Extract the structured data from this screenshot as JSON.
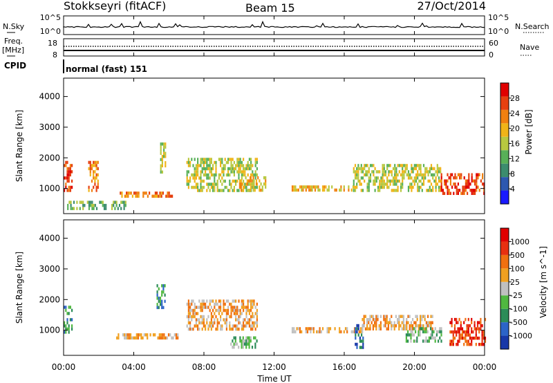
{
  "header": {
    "station": "Stokkseyri (fitACF)",
    "beam": "Beam 15",
    "date": "27/Oct/2014"
  },
  "noise_panel": {
    "left_label": "N.Sky",
    "left_ticks": [
      "10^5",
      "10^0"
    ],
    "right_label": "N.Search",
    "right_ticks": [
      "10^5",
      "10^0"
    ]
  },
  "freq_panel": {
    "left_label_1": "Freq.",
    "left_label_2": "[MHz]",
    "left_ticks": [
      "18",
      "8"
    ],
    "right_label": "Nave",
    "right_ticks": [
      "60",
      "0"
    ]
  },
  "cpid": {
    "label": "CPID",
    "program": "normal (fast) 151"
  },
  "chart_data": [
    {
      "type": "heatmap",
      "name": "power",
      "ylabel": "Slant Range [km]",
      "ylim": [
        180,
        4600
      ],
      "yticks": [
        "1000",
        "2000",
        "3000",
        "4000"
      ],
      "ytick_values": [
        1000,
        2000,
        3000,
        4000
      ],
      "colorbar_label": "Power [dB]",
      "colorbar_ticks": [
        "4",
        "8",
        "12",
        "16",
        "20",
        "24",
        "28"
      ],
      "colorbar_tick_values": [
        4,
        8,
        12,
        16,
        20,
        24,
        28
      ],
      "colorbar_range": [
        0,
        32
      ],
      "colorbar_colors": [
        "#1a1aff",
        "#2d58b0",
        "#3c8c6e",
        "#58b058",
        "#b8c840",
        "#f0b418",
        "#f08010",
        "#e64010",
        "#e00000"
      ],
      "echo_regions": [
        {
          "t": [
            0.0,
            0.5
          ],
          "r": [
            900,
            1900
          ],
          "level": 26
        },
        {
          "t": [
            1.4,
            2.0
          ],
          "r": [
            900,
            1900
          ],
          "level": 24
        },
        {
          "t": [
            0.2,
            3.5
          ],
          "r": [
            300,
            600
          ],
          "level": 12
        },
        {
          "t": [
            3.2,
            6.2
          ],
          "r": [
            700,
            900
          ],
          "level": 22
        },
        {
          "t": [
            5.5,
            5.8
          ],
          "r": [
            1500,
            2500
          ],
          "level": 14
        },
        {
          "t": [
            7.0,
            11.0
          ],
          "r": [
            900,
            2000
          ],
          "level": 14
        },
        {
          "t": [
            10.0,
            11.5
          ],
          "r": [
            900,
            1400
          ],
          "level": 20
        },
        {
          "t": [
            13.0,
            16.5
          ],
          "r": [
            900,
            1100
          ],
          "level": 20
        },
        {
          "t": [
            16.5,
            21.5
          ],
          "r": [
            900,
            1800
          ],
          "level": 16
        },
        {
          "t": [
            21.5,
            24.0
          ],
          "r": [
            800,
            1500
          ],
          "level": 26
        }
      ]
    },
    {
      "type": "heatmap",
      "name": "velocity",
      "ylabel": "Slant Range [km]",
      "ylim": [
        180,
        4600
      ],
      "yticks": [
        "1000",
        "2000",
        "3000",
        "4000"
      ],
      "ytick_values": [
        1000,
        2000,
        3000,
        4000
      ],
      "colorbar_label": "Velocity [m s^-1]",
      "colorbar_ticks": [
        "1000",
        "500",
        "100",
        "25",
        "-25",
        "-100",
        "-500",
        "-1000"
      ],
      "colorbar_colors": [
        "#1838a8",
        "#2c64c8",
        "#2c8c58",
        "#50b840",
        "#c0c0c0",
        "#f0a020",
        "#f07010",
        "#e83010",
        "#e00000"
      ],
      "echo_regions": [
        {
          "t": [
            0.0,
            0.5
          ],
          "r": [
            900,
            1800
          ],
          "vel": "-500"
        },
        {
          "t": [
            3.0,
            6.5
          ],
          "r": [
            700,
            900
          ],
          "vel": "25"
        },
        {
          "t": [
            5.3,
            5.8
          ],
          "r": [
            1700,
            2500
          ],
          "vel": "-500"
        },
        {
          "t": [
            7.0,
            11.0
          ],
          "r": [
            1000,
            2000
          ],
          "vel": "25"
        },
        {
          "t": [
            9.5,
            11.0
          ],
          "r": [
            400,
            800
          ],
          "vel": "-100"
        },
        {
          "t": [
            13.0,
            17.0
          ],
          "r": [
            900,
            1100
          ],
          "vel": "25"
        },
        {
          "t": [
            16.6,
            17.1
          ],
          "r": [
            400,
            1200
          ],
          "vel": "-1000"
        },
        {
          "t": [
            17.0,
            21.0
          ],
          "r": [
            1000,
            1500
          ],
          "vel": "25"
        },
        {
          "t": [
            19.5,
            21.5
          ],
          "r": [
            600,
            1100
          ],
          "vel": "-100"
        },
        {
          "t": [
            22.0,
            24.0
          ],
          "r": [
            500,
            1400
          ],
          "vel": "500"
        }
      ]
    }
  ],
  "x_axis": {
    "label": "Time UT",
    "range_hours": [
      0,
      24
    ],
    "ticks": [
      "00:00",
      "04:00",
      "08:00",
      "12:00",
      "16:00",
      "20:00",
      "00:00"
    ],
    "tick_hours": [
      0,
      4,
      8,
      12,
      16,
      20,
      24
    ]
  }
}
